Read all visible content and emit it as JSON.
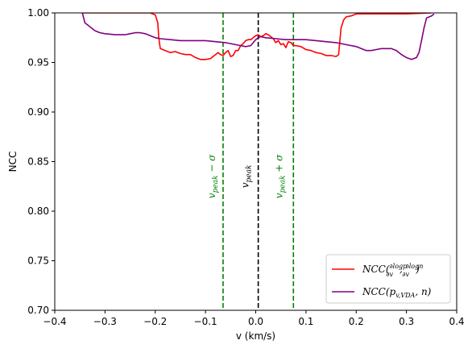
{
  "chart_data": {
    "type": "line",
    "title": "",
    "xlabel": "v (km/s)",
    "ylabel": "NCC",
    "xlim": [
      -0.4,
      0.4
    ],
    "ylim": [
      0.7,
      1.0
    ],
    "x_ticks": [
      "−0.4",
      "−0.3",
      "−0.2",
      "−0.1",
      "0.0",
      "0.1",
      "0.2",
      "0.3",
      "0.4"
    ],
    "y_ticks": [
      "0.70",
      "0.75",
      "0.80",
      "0.85",
      "0.90",
      "0.95",
      "1.00"
    ],
    "grid": false,
    "legend_position": "bottom-right",
    "series": [
      {
        "name": "NCC(∂logp/∂v, ∂logn/∂v)",
        "color": "#ff0000",
        "points": [
          [
            -0.345,
            1.0
          ],
          [
            -0.3,
            1.0
          ],
          [
            -0.25,
            1.0
          ],
          [
            -0.21,
            1.0
          ],
          [
            -0.2,
            0.998
          ],
          [
            -0.195,
            0.99
          ],
          [
            -0.193,
            0.975
          ],
          [
            -0.19,
            0.964
          ],
          [
            -0.18,
            0.962
          ],
          [
            -0.17,
            0.96
          ],
          [
            -0.16,
            0.961
          ],
          [
            -0.15,
            0.959
          ],
          [
            -0.14,
            0.958
          ],
          [
            -0.13,
            0.958
          ],
          [
            -0.12,
            0.955
          ],
          [
            -0.11,
            0.953
          ],
          [
            -0.1,
            0.953
          ],
          [
            -0.09,
            0.954
          ],
          [
            -0.085,
            0.956
          ],
          [
            -0.08,
            0.958
          ],
          [
            -0.075,
            0.96
          ],
          [
            -0.07,
            0.958
          ],
          [
            -0.065,
            0.957
          ],
          [
            -0.06,
            0.96
          ],
          [
            -0.055,
            0.962
          ],
          [
            -0.05,
            0.956
          ],
          [
            -0.045,
            0.957
          ],
          [
            -0.04,
            0.962
          ],
          [
            -0.035,
            0.962
          ],
          [
            -0.03,
            0.967
          ],
          [
            -0.025,
            0.969
          ],
          [
            -0.02,
            0.972
          ],
          [
            -0.015,
            0.973
          ],
          [
            -0.01,
            0.973
          ],
          [
            -0.005,
            0.975
          ],
          [
            0.0,
            0.977
          ],
          [
            0.005,
            0.978
          ],
          [
            0.01,
            0.976
          ],
          [
            0.015,
            0.977
          ],
          [
            0.02,
            0.979
          ],
          [
            0.025,
            0.978
          ],
          [
            0.03,
            0.976
          ],
          [
            0.035,
            0.974
          ],
          [
            0.04,
            0.97
          ],
          [
            0.045,
            0.972
          ],
          [
            0.05,
            0.968
          ],
          [
            0.055,
            0.969
          ],
          [
            0.06,
            0.965
          ],
          [
            0.065,
            0.971
          ],
          [
            0.07,
            0.97
          ],
          [
            0.075,
            0.967
          ],
          [
            0.08,
            0.967
          ],
          [
            0.09,
            0.966
          ],
          [
            0.1,
            0.963
          ],
          [
            0.11,
            0.962
          ],
          [
            0.12,
            0.96
          ],
          [
            0.13,
            0.959
          ],
          [
            0.14,
            0.957
          ],
          [
            0.15,
            0.957
          ],
          [
            0.16,
            0.956
          ],
          [
            0.165,
            0.958
          ],
          [
            0.168,
            0.975
          ],
          [
            0.17,
            0.985
          ],
          [
            0.175,
            0.993
          ],
          [
            0.18,
            0.996
          ],
          [
            0.19,
            0.997
          ],
          [
            0.2,
            0.999
          ],
          [
            0.25,
            0.999
          ],
          [
            0.3,
            0.999
          ],
          [
            0.35,
            1.0
          ]
        ]
      },
      {
        "name": "NCC(p_v,VDA, n)",
        "color": "#800080",
        "points": [
          [
            -0.345,
            1.0
          ],
          [
            -0.34,
            0.99
          ],
          [
            -0.33,
            0.986
          ],
          [
            -0.32,
            0.982
          ],
          [
            -0.31,
            0.98
          ],
          [
            -0.3,
            0.979
          ],
          [
            -0.28,
            0.978
          ],
          [
            -0.26,
            0.978
          ],
          [
            -0.25,
            0.979
          ],
          [
            -0.24,
            0.98
          ],
          [
            -0.23,
            0.98
          ],
          [
            -0.22,
            0.979
          ],
          [
            -0.21,
            0.977
          ],
          [
            -0.2,
            0.975
          ],
          [
            -0.19,
            0.974
          ],
          [
            -0.17,
            0.973
          ],
          [
            -0.15,
            0.972
          ],
          [
            -0.12,
            0.972
          ],
          [
            -0.1,
            0.972
          ],
          [
            -0.08,
            0.971
          ],
          [
            -0.06,
            0.97
          ],
          [
            -0.05,
            0.969
          ],
          [
            -0.04,
            0.968
          ],
          [
            -0.03,
            0.967
          ],
          [
            -0.02,
            0.966
          ],
          [
            -0.01,
            0.967
          ],
          [
            -0.005,
            0.97
          ],
          [
            0.0,
            0.973
          ],
          [
            0.005,
            0.975
          ],
          [
            0.01,
            0.976
          ],
          [
            0.02,
            0.975
          ],
          [
            0.04,
            0.974
          ],
          [
            0.06,
            0.973
          ],
          [
            0.08,
            0.973
          ],
          [
            0.1,
            0.973
          ],
          [
            0.12,
            0.972
          ],
          [
            0.14,
            0.971
          ],
          [
            0.16,
            0.97
          ],
          [
            0.18,
            0.968
          ],
          [
            0.2,
            0.966
          ],
          [
            0.21,
            0.964
          ],
          [
            0.22,
            0.962
          ],
          [
            0.23,
            0.962
          ],
          [
            0.24,
            0.963
          ],
          [
            0.25,
            0.964
          ],
          [
            0.27,
            0.964
          ],
          [
            0.28,
            0.962
          ],
          [
            0.29,
            0.958
          ],
          [
            0.3,
            0.955
          ],
          [
            0.31,
            0.953
          ],
          [
            0.32,
            0.955
          ],
          [
            0.325,
            0.96
          ],
          [
            0.33,
            0.972
          ],
          [
            0.335,
            0.985
          ],
          [
            0.34,
            0.995
          ],
          [
            0.35,
            0.997
          ],
          [
            0.355,
            0.999
          ]
        ]
      }
    ],
    "vlines": [
      {
        "x": -0.065,
        "color": "#008000",
        "style": "dashed",
        "label": "v_peak − σ"
      },
      {
        "x": 0.005,
        "color": "#000000",
        "style": "dashed",
        "label": "v_peak"
      },
      {
        "x": 0.075,
        "color": "#008000",
        "style": "dashed",
        "label": "v_peak + σ"
      }
    ],
    "legend": [
      {
        "label": "NCC(∂logp/∂v, ∂logn/∂v)",
        "color": "#ff0000"
      },
      {
        "label": "NCC(p_v,VDA, n)",
        "color": "#800080"
      }
    ]
  }
}
